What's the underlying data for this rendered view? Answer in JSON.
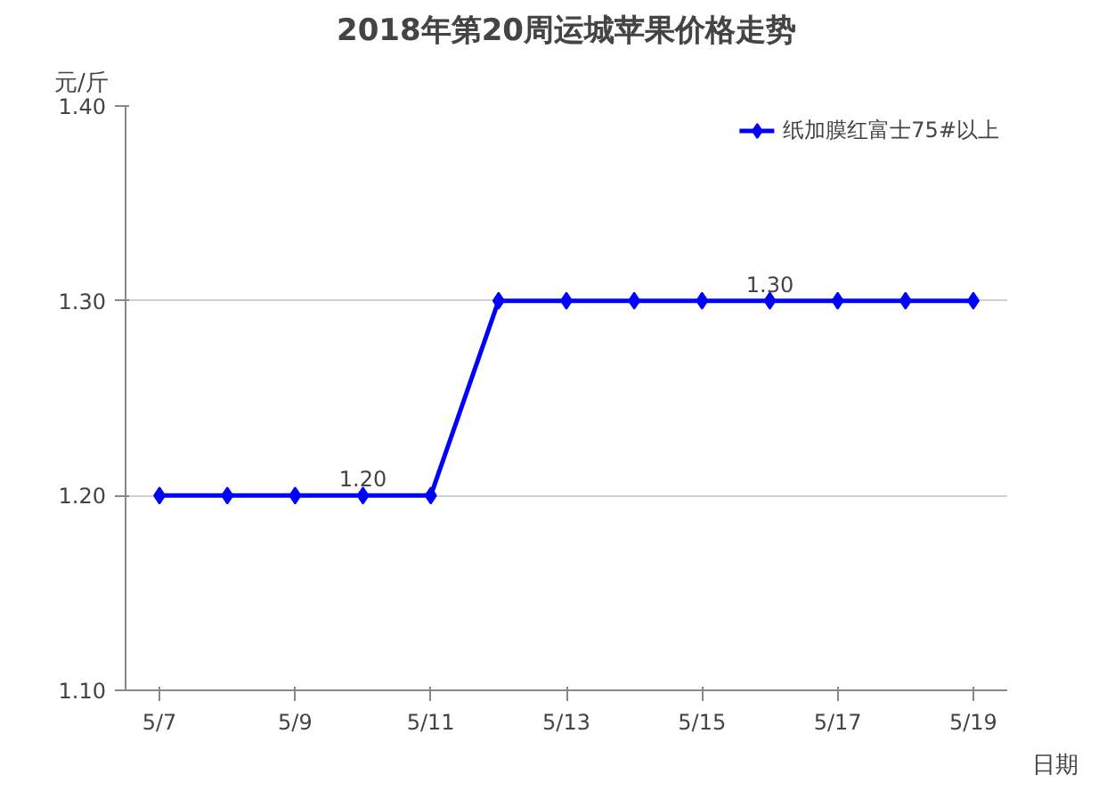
{
  "chart_data": {
    "type": "line",
    "title": "2018年第20周运城苹果价格走势",
    "ylabel": "元/斤",
    "xlabel": "日期",
    "categories": [
      "5/7",
      null,
      "5/9",
      null,
      "5/11",
      null,
      "5/13",
      null,
      "5/15",
      null,
      "5/17",
      null,
      "5/19"
    ],
    "series": [
      {
        "name": "纸加膜红富士75#以上",
        "color": "#0000ff",
        "values": [
          1.2,
          1.2,
          1.2,
          1.2,
          1.2,
          1.3,
          1.3,
          1.3,
          1.3,
          1.3,
          1.3,
          1.3,
          1.3
        ],
        "value_labels": [
          null,
          null,
          null,
          "1.20",
          null,
          null,
          null,
          null,
          null,
          "1.30",
          null,
          null,
          null
        ]
      }
    ],
    "ylim": [
      1.1,
      1.4
    ],
    "yticks": [
      {
        "value": 1.1,
        "label": "1.10"
      },
      {
        "value": 1.2,
        "label": "1.20"
      },
      {
        "value": 1.3,
        "label": "1.30"
      },
      {
        "value": 1.4,
        "label": "1.40"
      }
    ],
    "grid": "y",
    "legend": "top right",
    "marker": "diamond",
    "line_style": "solid"
  }
}
